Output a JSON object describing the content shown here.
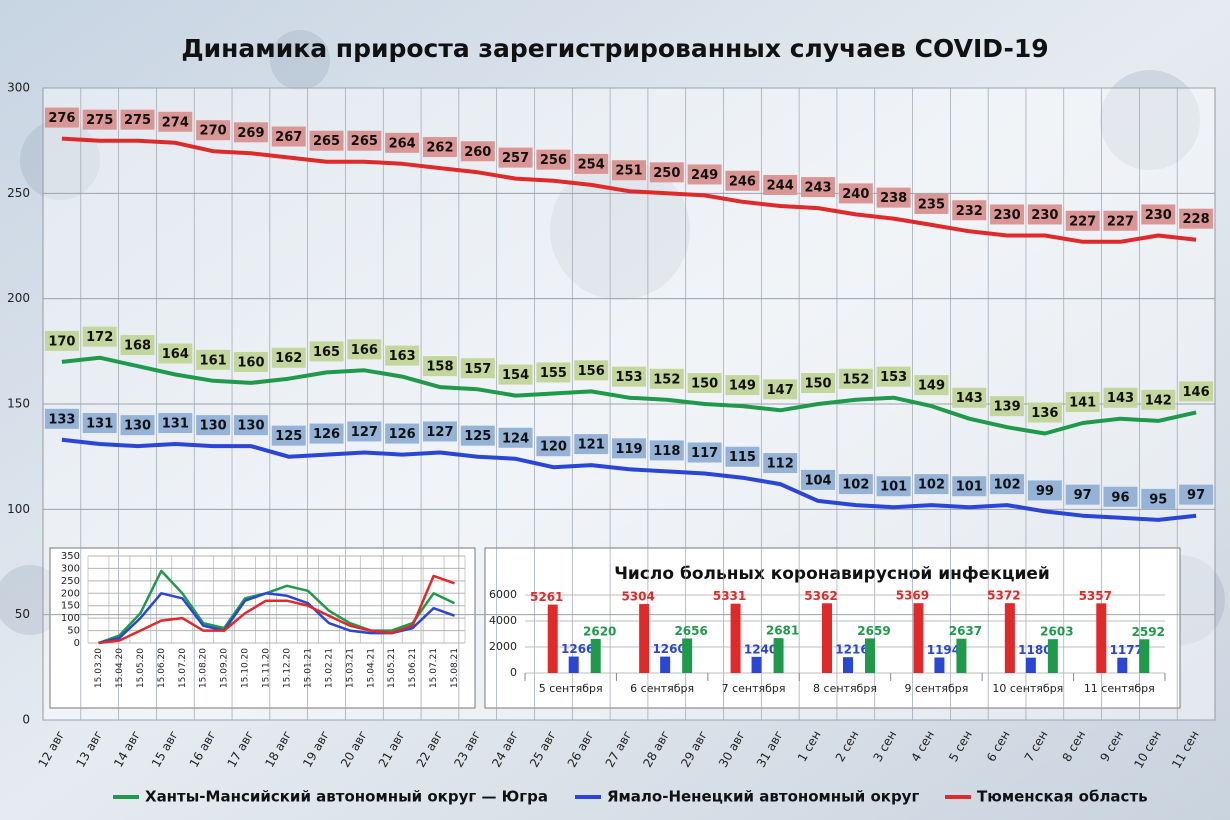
{
  "chart_data": [
    {
      "type": "line",
      "title": "Динамика прироста зарегистрированных случаев COVID-19",
      "categories": [
        "12 авг",
        "13 авг",
        "14 авг",
        "15 авг",
        "16 авг",
        "17 авг",
        "18 авг",
        "19 авг",
        "20 авг",
        "21 авг",
        "22 авг",
        "23 авг",
        "24 авг",
        "25 авг",
        "26 авг",
        "27 авг",
        "28 авг",
        "29 авг",
        "30 авг",
        "31 авг",
        "1 сен",
        "2 сен",
        "3 сен",
        "4 сен",
        "5 сен",
        "6 сен",
        "7 сен",
        "8 сен",
        "9 сен",
        "10 сен",
        "11 сен"
      ],
      "series": [
        {
          "name": "Ханты-Мансийский автономный округ — Югра",
          "color": "#1f9a4a",
          "label_color": "#c3d69b",
          "values": [
            170,
            172,
            168,
            164,
            161,
            160,
            162,
            165,
            166,
            163,
            158,
            157,
            154,
            155,
            156,
            153,
            152,
            150,
            149,
            147,
            150,
            152,
            153,
            149,
            143,
            139,
            136,
            141,
            143,
            142,
            146
          ]
        },
        {
          "name": "Ямало-Ненецкий автономный округ",
          "color": "#2a46d6",
          "label_color": "#95b3d7",
          "values": [
            133,
            131,
            130,
            131,
            130,
            130,
            125,
            126,
            127,
            126,
            127,
            125,
            124,
            120,
            121,
            119,
            118,
            117,
            115,
            112,
            104,
            102,
            101,
            102,
            101,
            102,
            99,
            97,
            96,
            95,
            97
          ]
        },
        {
          "name": "Тюменская область",
          "color": "#e02a2a",
          "label_color": "#d99694",
          "values": [
            276,
            275,
            275,
            274,
            270,
            269,
            267,
            265,
            265,
            264,
            262,
            260,
            257,
            256,
            254,
            251,
            250,
            249,
            246,
            244,
            243,
            240,
            238,
            235,
            232,
            230,
            230,
            227,
            227,
            230,
            228
          ]
        }
      ],
      "ylim": [
        0,
        300
      ],
      "yticks": [
        0,
        50,
        100,
        150,
        200,
        250,
        300
      ],
      "grid": true,
      "legend": "bottom"
    },
    {
      "type": "line",
      "categories": [
        "15.03.20",
        "15.04.20",
        "15.05.20",
        "15.06.20",
        "15.07.20",
        "15.08.20",
        "15.09.20",
        "15.10.20",
        "15.11.20",
        "15.12.20",
        "15.01.21",
        "15.02.21",
        "15.03.21",
        "15.04.21",
        "15.05.21",
        "15.06.21",
        "15.07.21",
        "15.08.21"
      ],
      "series": [
        {
          "color": "#1f9a4a",
          "values": [
            0,
            30,
            120,
            290,
            200,
            80,
            60,
            180,
            200,
            230,
            210,
            130,
            80,
            50,
            50,
            80,
            200,
            160
          ]
        },
        {
          "color": "#2a46d6",
          "values": [
            0,
            20,
            100,
            200,
            180,
            70,
            50,
            170,
            200,
            190,
            160,
            80,
            50,
            40,
            40,
            60,
            140,
            110
          ]
        },
        {
          "color": "#e02a2a",
          "values": [
            0,
            10,
            50,
            90,
            100,
            50,
            50,
            120,
            170,
            170,
            150,
            110,
            70,
            50,
            40,
            70,
            270,
            240
          ]
        }
      ],
      "ylim": [
        0,
        350
      ],
      "yticks": [
        0,
        50,
        100,
        150,
        200,
        250,
        300,
        350
      ],
      "grid": true
    },
    {
      "type": "bar",
      "title": "Число больных коронавирусной инфекцией",
      "categories": [
        "5 сентября",
        "6 сентября",
        "7 сентября",
        "8 сентября",
        "9 сентября",
        "10 сентября",
        "11 сентября"
      ],
      "series": [
        {
          "color": "#e02a2a",
          "values": [
            5261,
            5304,
            5331,
            5362,
            5369,
            5372,
            5357
          ]
        },
        {
          "color": "#2a46d6",
          "values": [
            1266,
            1260,
            1240,
            1216,
            1194,
            1180,
            1177
          ]
        },
        {
          "color": "#1f9a4a",
          "values": [
            2620,
            2656,
            2681,
            2659,
            2637,
            2603,
            2592
          ]
        }
      ],
      "ylim": [
        0,
        6000
      ],
      "yticks": [
        0,
        2000,
        4000,
        6000
      ],
      "grid": true
    }
  ]
}
